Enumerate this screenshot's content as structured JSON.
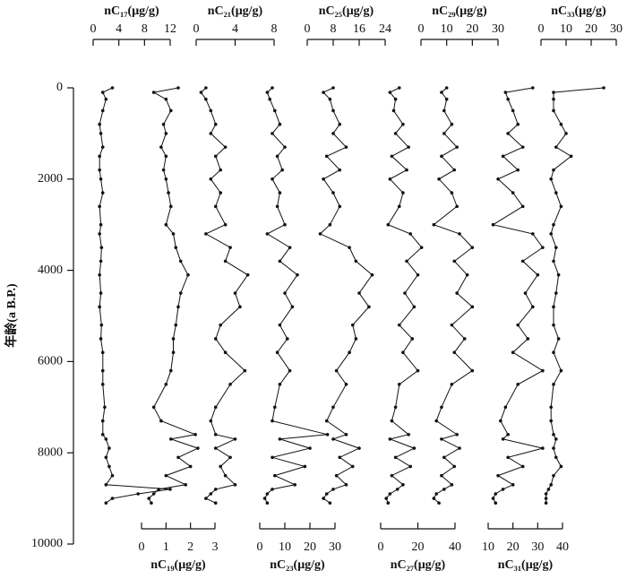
{
  "age_axis": {
    "label": "年龄(a B.P.)",
    "ylim": [
      0,
      10000
    ],
    "yticks": [
      0,
      2000,
      4000,
      6000,
      8000,
      10000
    ],
    "ages": [
      0,
      100,
      250,
      500,
      800,
      1000,
      1300,
      1500,
      1800,
      2000,
      2300,
      2600,
      3000,
      3200,
      3500,
      3800,
      4100,
      4500,
      4800,
      5200,
      5500,
      5800,
      6200,
      6500,
      7000,
      7300,
      7600,
      7700,
      7900,
      8100,
      8300,
      8500,
      8700,
      8800,
      8900,
      9000,
      9100
    ]
  },
  "chart_data": [
    {
      "type": "line",
      "x_label": "nC₁₇(μg/g)",
      "axis_position": "top",
      "xlim": [
        0,
        12
      ],
      "xticks": [
        0,
        4,
        8,
        12
      ],
      "color": "#111111",
      "values": [
        3,
        1.5,
        2,
        1.5,
        1,
        1.2,
        1.5,
        1,
        1,
        1.2,
        1.5,
        1,
        1.2,
        1,
        1.3,
        1.2,
        1,
        1.2,
        1,
        1.3,
        1.2,
        1.5,
        1.5,
        1.5,
        1.8,
        1.5,
        1.5,
        2,
        2.5,
        2,
        2.5,
        3,
        2,
        12,
        7,
        3,
        2
      ]
    },
    {
      "type": "line",
      "x_label": "nC₁₉(μg/g)",
      "axis_position": "bottom",
      "xlim": [
        0,
        3
      ],
      "xticks": [
        0,
        1,
        2,
        3
      ],
      "color": "#111111",
      "values": [
        1.5,
        0.5,
        1,
        1.2,
        0.9,
        1,
        0.8,
        1,
        0.9,
        1,
        1.1,
        1.2,
        1,
        1.3,
        1.4,
        1.6,
        1.9,
        1.6,
        1.5,
        1.4,
        1.3,
        1.3,
        1.2,
        1,
        0.5,
        0.8,
        2.2,
        1.2,
        2.3,
        1.5,
        2,
        1,
        1.8,
        0.7,
        0.5,
        0.3,
        0.4
      ]
    },
    {
      "type": "line",
      "x_label": "nC₂₁(μg/g)",
      "axis_position": "top",
      "xlim": [
        0,
        8
      ],
      "xticks": [
        0,
        4,
        8
      ],
      "color": "#111111",
      "values": [
        1,
        0.5,
        1,
        1.5,
        2,
        1.5,
        3,
        2,
        2.5,
        1.5,
        2.5,
        2,
        3,
        1,
        3.5,
        3,
        5.3,
        4,
        4.5,
        2.5,
        2,
        3,
        5,
        3.5,
        2,
        1.5,
        2,
        4,
        2,
        3.5,
        2.5,
        3,
        4,
        2,
        1.5,
        1,
        2
      ]
    },
    {
      "type": "line",
      "x_label": "nC₂₃(μg/g)",
      "axis_position": "bottom",
      "xlim": [
        0,
        30
      ],
      "xticks": [
        0,
        10,
        20,
        30
      ],
      "color": "#111111",
      "values": [
        5,
        3,
        4,
        6,
        8,
        5,
        10,
        7,
        9,
        5,
        8,
        7,
        10,
        3,
        12,
        8,
        15,
        10,
        13,
        8,
        11,
        7,
        12,
        8,
        6,
        5,
        27,
        8,
        20,
        5,
        18,
        6,
        14,
        5,
        3,
        2,
        3
      ]
    },
    {
      "type": "line",
      "x_label": "nC₂₅(μg/g)",
      "axis_position": "top",
      "xlim": [
        0,
        24
      ],
      "xticks": [
        0,
        8,
        16,
        24
      ],
      "color": "#111111",
      "values": [
        8,
        5,
        7,
        8,
        10,
        8,
        12,
        6,
        10,
        5,
        8,
        10,
        7,
        4,
        13,
        15,
        20,
        16,
        19,
        14,
        15,
        13,
        9,
        12,
        8,
        6,
        12,
        8,
        16,
        10,
        14,
        9,
        12,
        8,
        6,
        5,
        7
      ]
    },
    {
      "type": "line",
      "x_label": "nC₂₇(μg/g)",
      "axis_position": "bottom",
      "xlim": [
        0,
        40
      ],
      "xticks": [
        0,
        20,
        40
      ],
      "color": "#111111",
      "values": [
        10,
        5,
        8,
        7,
        12,
        8,
        15,
        6,
        14,
        5,
        12,
        10,
        4,
        16,
        22,
        14,
        20,
        13,
        18,
        10,
        17,
        12,
        20,
        10,
        8,
        6,
        15,
        5,
        18,
        8,
        16,
        6,
        12,
        9,
        5,
        3,
        4
      ]
    },
    {
      "type": "line",
      "x_label": "nC₂₉(μg/g)",
      "axis_position": "top",
      "xlim": [
        0,
        30
      ],
      "xticks": [
        0,
        10,
        20,
        30
      ],
      "color": "#111111",
      "values": [
        10,
        8,
        10,
        9,
        12,
        9,
        14,
        8,
        13,
        7,
        12,
        14,
        5,
        15,
        20,
        13,
        18,
        14,
        20,
        12,
        17,
        13,
        20,
        12,
        8,
        6,
        14,
        8,
        15,
        9,
        13,
        8,
        12,
        9,
        6,
        5,
        7
      ]
    },
    {
      "type": "line",
      "x_label": "nC₃₁(μg/g)",
      "axis_position": "bottom",
      "xlim": [
        10,
        40
      ],
      "xticks": [
        10,
        20,
        30,
        40
      ],
      "color": "#111111",
      "values": [
        28,
        17,
        18,
        20,
        22,
        18,
        24,
        16,
        22,
        14,
        20,
        24,
        12,
        28,
        32,
        24,
        30,
        25,
        28,
        22,
        26,
        20,
        32,
        22,
        17,
        15,
        18,
        16,
        32,
        18,
        24,
        14,
        20,
        16,
        13,
        12,
        13
      ]
    },
    {
      "type": "line",
      "x_label": "nC₃₃(μg/g)",
      "axis_position": "top",
      "xlim": [
        0,
        30
      ],
      "xticks": [
        0,
        10,
        20,
        30
      ],
      "color": "#111111",
      "values": [
        25,
        5,
        5,
        5,
        8,
        10,
        6,
        12,
        5,
        4,
        6,
        8,
        5,
        4,
        6,
        5,
        7,
        6,
        5,
        5,
        7,
        5,
        8,
        5,
        4,
        4,
        5,
        6,
        5,
        6,
        8,
        5,
        4,
        3,
        2,
        2,
        2
      ]
    }
  ]
}
